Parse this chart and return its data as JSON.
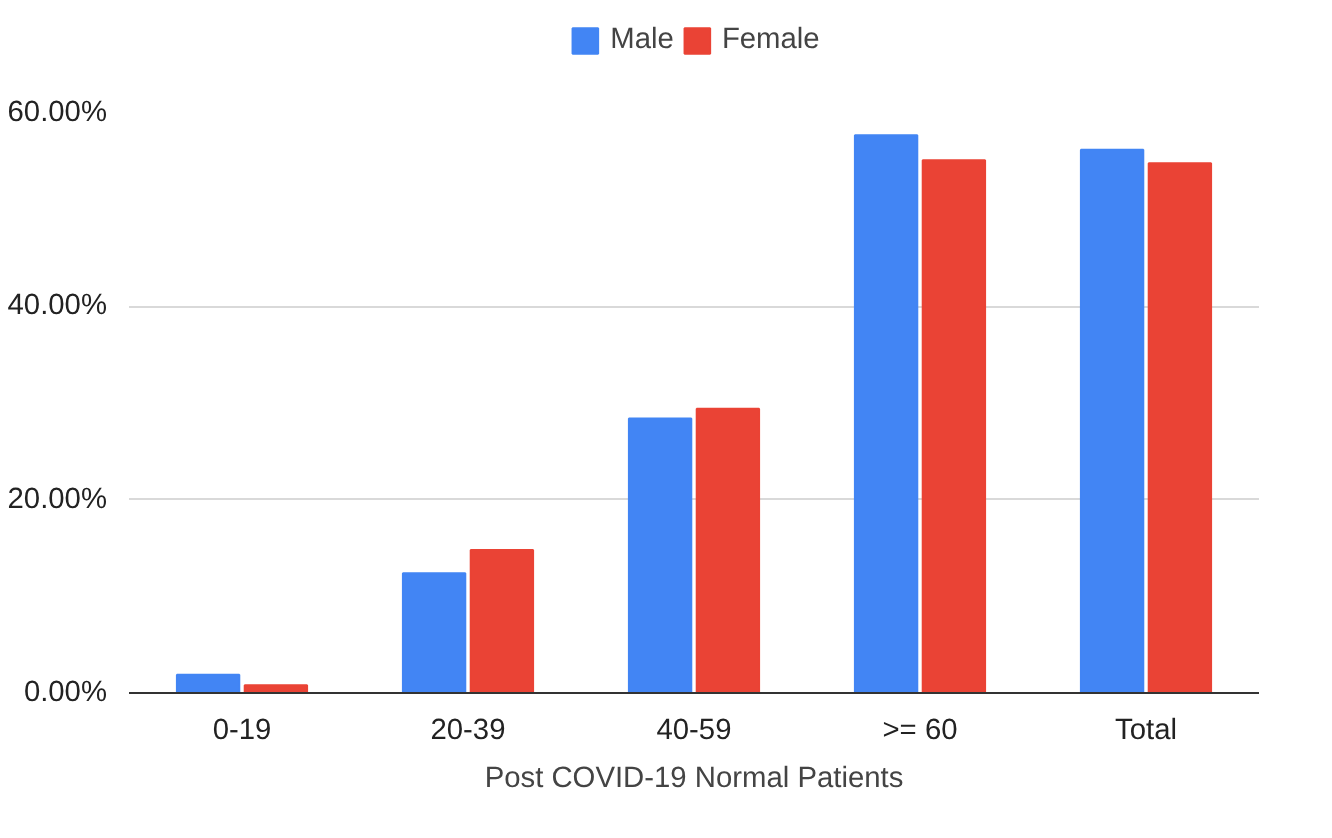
{
  "chart_data": {
    "type": "bar",
    "xlabel": "Post COVID-19 Normal Patients",
    "categories": [
      "0-19",
      "20-39",
      "40-59",
      ">= 60",
      "Total"
    ],
    "series": [
      {
        "name": "Male",
        "color": "#4285f4",
        "values": [
          1.9,
          12.4,
          28.4,
          57.7,
          56.2
        ]
      },
      {
        "name": "Female",
        "color": "#ea4335",
        "values": [
          0.8,
          14.8,
          29.4,
          55.1,
          54.8
        ]
      }
    ],
    "ylim": [
      0,
      60
    ],
    "yticks": [
      {
        "value": 0,
        "label": "0.00%"
      },
      {
        "value": 20,
        "label": "20.00%"
      },
      {
        "value": 40,
        "label": "40.00%"
      },
      {
        "value": 60,
        "label": "60.00%"
      }
    ],
    "grid": "y",
    "legend": "top"
  }
}
